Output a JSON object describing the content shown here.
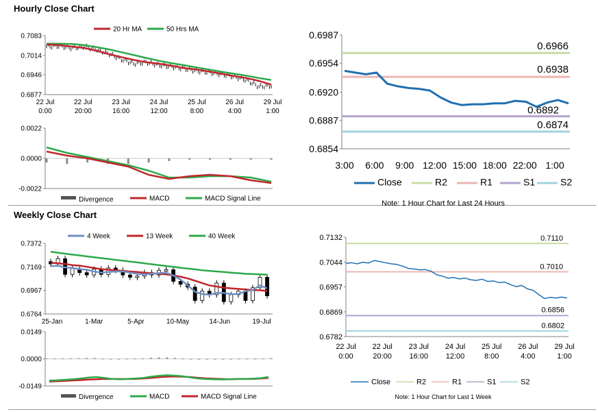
{
  "hourly": {
    "title": "Hourly Close Chart",
    "price": {
      "legend": [
        "20 Hr MA",
        "50 Hrs MA"
      ],
      "y_ticks": [
        "0.7083",
        "0.7014",
        "0.6946",
        "0.6877"
      ],
      "ylim": [
        0.6877,
        0.7083
      ],
      "x_ticks": [
        [
          "22 Jul",
          "0:00"
        ],
        [
          "22 Jul",
          "20:00"
        ],
        [
          "23 Jul",
          "16:00"
        ],
        [
          "24 Jul",
          "12:00"
        ],
        [
          "25 Jul",
          "8:00"
        ],
        [
          "26 Jul",
          "4:00"
        ],
        [
          "29 Jul",
          "1:00"
        ]
      ],
      "ma20": [
        0.7052,
        0.705,
        0.7045,
        0.704,
        0.703,
        0.7018,
        0.7008,
        0.6998,
        0.699,
        0.6985,
        0.6978,
        0.697,
        0.6965,
        0.6958,
        0.695,
        0.6942,
        0.6935,
        0.6925,
        0.6912
      ],
      "ma50": [
        0.7055,
        0.7055,
        0.7054,
        0.705,
        0.7043,
        0.7035,
        0.7025,
        0.7015,
        0.7005,
        0.6995,
        0.6987,
        0.698,
        0.6972,
        0.6965,
        0.6957,
        0.695,
        0.6943,
        0.6935,
        0.6928
      ],
      "close": [
        0.7045,
        0.7047,
        0.704,
        0.7045,
        0.7035,
        0.702,
        0.7,
        0.6985,
        0.699,
        0.698,
        0.6975,
        0.6968,
        0.696,
        0.6955,
        0.6948,
        0.694,
        0.6928,
        0.6905,
        0.6908
      ]
    },
    "macd": {
      "legend": [
        "Divergence",
        "MACD",
        "MACD Signal Line"
      ],
      "y_ticks": [
        "0.0022",
        "0.0000",
        "-0.0022"
      ],
      "ylim": [
        -0.0022,
        0.0022
      ],
      "macd": [
        0.0005,
        0.0002,
        0.0,
        -0.0003,
        -0.0006,
        -0.0012,
        -0.0015,
        -0.0013,
        -0.0012,
        -0.0013,
        -0.0016,
        -0.0018
      ],
      "signal": [
        0.0008,
        0.0004,
        0.0001,
        -0.0002,
        -0.0005,
        -0.0009,
        -0.0014,
        -0.0014,
        -0.0013,
        -0.0013,
        -0.0014,
        -0.0017
      ],
      "divergence": [
        -0.0003,
        -0.0004,
        -0.0003,
        -0.0004,
        -0.0004,
        -0.0003,
        -0.0002,
        -0.0001,
        -0.0001,
        -0.0001,
        -0.0001,
        -0.0001
      ]
    },
    "levels": {
      "y_ticks": [
        "0.6987",
        "0.6954",
        "0.6920",
        "0.6887",
        "0.6854"
      ],
      "ylim": [
        0.6854,
        0.6987
      ],
      "x_ticks": [
        "3:00",
        "6:00",
        "9:00",
        "12:00",
        "15:00",
        "18:00",
        "22:00",
        "1:00"
      ],
      "close": [
        0.6945,
        0.6943,
        0.6941,
        0.6943,
        0.693,
        0.6927,
        0.6925,
        0.6924,
        0.6922,
        0.6914,
        0.6908,
        0.6905,
        0.6906,
        0.6906,
        0.6907,
        0.6907,
        0.691,
        0.6909,
        0.6903,
        0.6908,
        0.6911,
        0.6907
      ],
      "R2": 0.6966,
      "R1": 0.6938,
      "S1": 0.6892,
      "S2": 0.6874,
      "R2_label": "0.6966",
      "R1_label": "0.6938",
      "S1_label": "0.6892",
      "S2_label": "0.6874",
      "legend": [
        "Close",
        "R2",
        "R1",
        "S1",
        "S2"
      ],
      "note": "Note: 1 Hour Chart for Last 24 Hours"
    }
  },
  "weekly": {
    "title": "Weekly Close Chart",
    "price": {
      "legend": [
        "4 Week",
        "13 Week",
        "40 Week"
      ],
      "y_ticks": [
        "0.7372",
        "0.7169",
        "0.6967",
        "0.6764"
      ],
      "ylim": [
        0.6764,
        0.7372
      ],
      "x_ticks": [
        "25-Jan",
        "1-Mar",
        "5-Apr",
        "10-May",
        "14-Jun",
        "19-Jul"
      ],
      "close": [
        0.7195,
        0.724,
        0.7105,
        0.7155,
        0.712,
        0.71,
        0.715,
        0.7105,
        0.716,
        0.714,
        0.71,
        0.708,
        0.709,
        0.712,
        0.71,
        0.714,
        0.7145,
        0.7045,
        0.702,
        0.6995,
        0.688,
        0.696,
        0.693,
        0.703,
        0.687,
        0.693,
        0.696,
        0.688,
        0.699,
        0.708,
        0.692
      ],
      "wk4": [
        0.7175,
        0.718,
        0.7165,
        0.716,
        0.715,
        0.7145,
        0.713,
        0.712,
        0.7125,
        0.713,
        0.713,
        0.712,
        0.711,
        0.7105,
        0.711,
        0.7115,
        0.712,
        0.7095,
        0.706,
        0.701,
        0.6955,
        0.6935,
        0.693,
        0.6945,
        0.6945,
        0.6935,
        0.6935,
        0.696,
        0.697,
        0.701,
        0.6985
      ],
      "wk13": [
        0.7205,
        0.72,
        0.7195,
        0.7185,
        0.718,
        0.717,
        0.716,
        0.715,
        0.7145,
        0.714,
        0.7135,
        0.713,
        0.7125,
        0.712,
        0.7115,
        0.711,
        0.7105,
        0.7095,
        0.7085,
        0.707,
        0.705,
        0.703,
        0.701,
        0.7,
        0.699,
        0.6985,
        0.698,
        0.6975,
        0.697,
        0.6968,
        0.6962
      ],
      "wk40": [
        0.73,
        0.7292,
        0.7283,
        0.7275,
        0.7268,
        0.726,
        0.7252,
        0.7245,
        0.7238,
        0.723,
        0.7223,
        0.7215,
        0.7208,
        0.72,
        0.7192,
        0.7185,
        0.7177,
        0.717,
        0.7162,
        0.7155,
        0.7148,
        0.714,
        0.7135,
        0.713,
        0.7125,
        0.712,
        0.7115,
        0.711,
        0.7108,
        0.7105,
        0.7103
      ]
    },
    "macd": {
      "legend": [
        "Divergence",
        "MACD",
        "MACD Signal Line"
      ],
      "y_ticks": [
        "0.0149",
        "0.0000",
        "-0.0149"
      ],
      "ylim": [
        -0.0149,
        0.0149
      ],
      "macd": [
        -0.012,
        -0.0118,
        -0.0115,
        -0.0112,
        -0.0108,
        -0.0103,
        -0.01,
        -0.0105,
        -0.011,
        -0.0112,
        -0.011,
        -0.0108,
        -0.0105,
        -0.0098,
        -0.0093,
        -0.009,
        -0.0092,
        -0.0096,
        -0.0102,
        -0.0108,
        -0.011,
        -0.0112,
        -0.0113,
        -0.0112,
        -0.011,
        -0.011,
        -0.0109,
        -0.0106,
        -0.01
      ],
      "signal": [
        -0.0125,
        -0.0123,
        -0.0121,
        -0.0119,
        -0.0117,
        -0.0114,
        -0.0112,
        -0.011,
        -0.011,
        -0.0111,
        -0.0111,
        -0.011,
        -0.0108,
        -0.0105,
        -0.0101,
        -0.0098,
        -0.0097,
        -0.0098,
        -0.01,
        -0.0104,
        -0.0107,
        -0.0109,
        -0.0111,
        -0.0112,
        -0.0111,
        -0.0111,
        -0.011,
        -0.0108,
        -0.0105
      ],
      "divergence": [
        0.0002,
        0.0002,
        0.0003,
        0.0003,
        0.0004,
        0.0005,
        0.0005,
        0.0001,
        0.0,
        0.0,
        0.0001,
        0.0002,
        0.0003,
        0.0006,
        0.0008,
        0.0008,
        0.0005,
        0.0002,
        -0.0002,
        -0.0004,
        -0.0003,
        -0.0003,
        -0.0002,
        -0.0001,
        0.0001,
        0.0001,
        0.0001,
        0.0002,
        0.0004
      ]
    },
    "levels": {
      "y_ticks": [
        "0.7132",
        "0.7044",
        "0.6957",
        "0.6869",
        "0.6782"
      ],
      "ylim": [
        0.6782,
        0.7132
      ],
      "x_ticks": [
        [
          "22 Jul",
          "0:00"
        ],
        [
          "22 Jul",
          "20:00"
        ],
        [
          "23 Jul",
          "16:00"
        ],
        [
          "24 Jul",
          "12:00"
        ],
        [
          "25 Jul",
          "8:00"
        ],
        [
          "26 Jul",
          "4:00"
        ],
        [
          "29 Jul",
          "1:00"
        ]
      ],
      "close": [
        0.704,
        0.7042,
        0.7038,
        0.7044,
        0.7041,
        0.705,
        0.7046,
        0.7042,
        0.7038,
        0.7036,
        0.703,
        0.7022,
        0.702,
        0.7017,
        0.7018,
        0.7012,
        0.7,
        0.6995,
        0.6988,
        0.699,
        0.6985,
        0.6988,
        0.6982,
        0.698,
        0.6984,
        0.6976,
        0.6978,
        0.6972,
        0.6974,
        0.6965,
        0.6958,
        0.6962,
        0.695,
        0.6945,
        0.693,
        0.6916,
        0.692,
        0.6918,
        0.6921,
        0.6918
      ],
      "R2": 0.711,
      "R1": 0.701,
      "S1": 0.6856,
      "S2": 0.6802,
      "R2_label": "0.7110",
      "R1_label": "0.7010",
      "S1_label": "0.6856",
      "S2_label": "0.6802",
      "legend": [
        "Close",
        "R2",
        "R1",
        "S1",
        "S2"
      ],
      "note": "Note: 1 Hour Chart for Last 1 Week"
    }
  },
  "colors": {
    "ma_red": "#c0262b",
    "ma_green": "#2ea84a",
    "wk_blue": "#6f8fc4",
    "close_blue": "#1f6fb0",
    "r2": "#c8dca4",
    "r1": "#eab6b2",
    "s1": "#b3a4cc",
    "s2": "#9fd2de",
    "candle": "#000000",
    "axis": "#808080"
  }
}
